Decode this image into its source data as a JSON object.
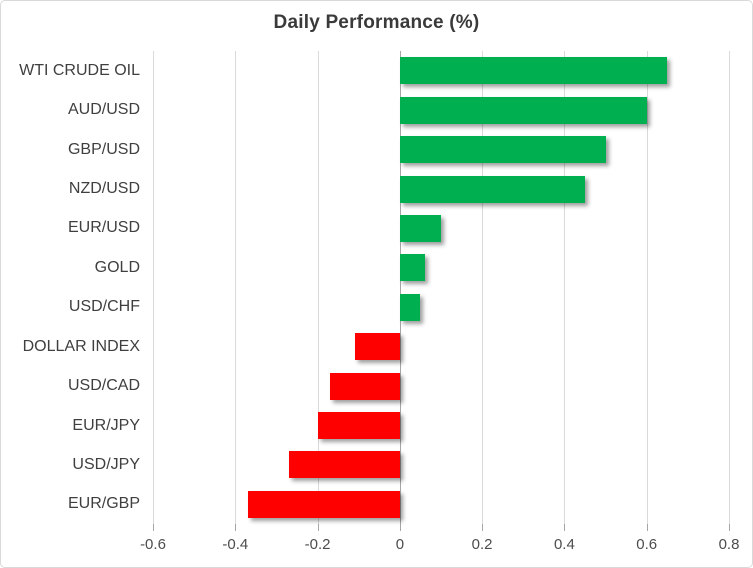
{
  "chart_data": {
    "type": "bar",
    "orientation": "horizontal",
    "title": "Daily Performance (%)",
    "categories": [
      "WTI CRUDE OIL",
      "AUD/USD",
      "GBP/USD",
      "NZD/USD",
      "EUR/USD",
      "GOLD",
      "USD/CHF",
      "DOLLAR INDEX",
      "USD/CAD",
      "EUR/JPY",
      "USD/JPY",
      "EUR/GBP"
    ],
    "values": [
      0.65,
      0.6,
      0.5,
      0.45,
      0.1,
      0.06,
      0.05,
      -0.11,
      -0.17,
      -0.2,
      -0.27,
      -0.37
    ],
    "xlabel": "",
    "ylabel": "",
    "xlim": [
      -0.6,
      0.8
    ],
    "x_tick_step": 0.2,
    "x_tick_labels": [
      "-0.6",
      "-0.4",
      "-0.2",
      "0",
      "0.2",
      "0.4",
      "0.6",
      "0.8"
    ],
    "grid": true,
    "legend": "none",
    "colors": {
      "positive_bar": "#00B050",
      "negative_bar": "#FF0000",
      "gridline": "#D9D9D9",
      "axis_line": "#A6A6A6",
      "title_text": "#3A3A3A",
      "category_text": "#3F3F3F",
      "tick_text": "#4D4D4D",
      "card_border": "#D9D9D9"
    }
  }
}
